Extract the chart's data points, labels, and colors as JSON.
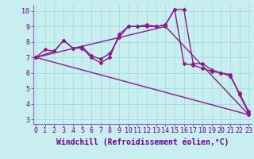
{
  "background_color": "#c8eef0",
  "grid_color": "#aadddd",
  "line_color": "#8b1a8b",
  "xlabel_bg_color": "#6600aa",
  "title": "Windchill (Refroidissement éolien,°C)",
  "xlim": [
    -0.3,
    23.3
  ],
  "ylim": [
    2.7,
    10.4
  ],
  "yticks": [
    3,
    4,
    5,
    6,
    7,
    8,
    9,
    10
  ],
  "xticks": [
    0,
    1,
    2,
    3,
    4,
    5,
    6,
    7,
    8,
    9,
    10,
    11,
    12,
    13,
    14,
    15,
    16,
    17,
    18,
    19,
    20,
    21,
    22,
    23
  ],
  "series1_x": [
    0,
    1,
    2,
    3,
    4,
    5,
    6,
    7,
    8,
    9,
    10,
    11,
    12,
    13,
    14,
    15,
    16,
    17,
    18,
    19,
    20,
    21,
    22,
    23
  ],
  "series1_y": [
    7.0,
    7.5,
    7.4,
    8.1,
    7.6,
    7.6,
    7.0,
    6.65,
    7.0,
    8.5,
    9.0,
    9.0,
    9.1,
    9.0,
    9.1,
    10.1,
    10.1,
    6.6,
    6.6,
    6.2,
    6.0,
    5.8,
    4.7,
    3.5
  ],
  "series2_x": [
    0,
    2,
    3,
    4,
    5,
    6,
    7,
    8,
    9,
    10,
    11,
    12,
    13,
    14,
    15,
    16,
    17,
    18,
    19,
    20,
    21,
    22,
    23
  ],
  "series2_y": [
    7.0,
    7.4,
    8.1,
    7.6,
    7.7,
    7.1,
    6.9,
    7.25,
    8.3,
    9.0,
    9.0,
    9.0,
    9.0,
    9.1,
    10.1,
    6.6,
    6.5,
    6.3,
    6.1,
    6.0,
    5.9,
    4.6,
    3.4
  ],
  "series3_x": [
    0,
    23
  ],
  "series3_y": [
    7.0,
    3.3
  ],
  "series4_x": [
    0,
    14,
    23
  ],
  "series4_y": [
    7.0,
    9.0,
    3.3
  ],
  "markersize": 2.0,
  "linewidth": 1.0,
  "tick_fontsize": 6,
  "xlabel_fontsize": 7,
  "tick_color": "#660099",
  "xlabel_color": "#660099"
}
